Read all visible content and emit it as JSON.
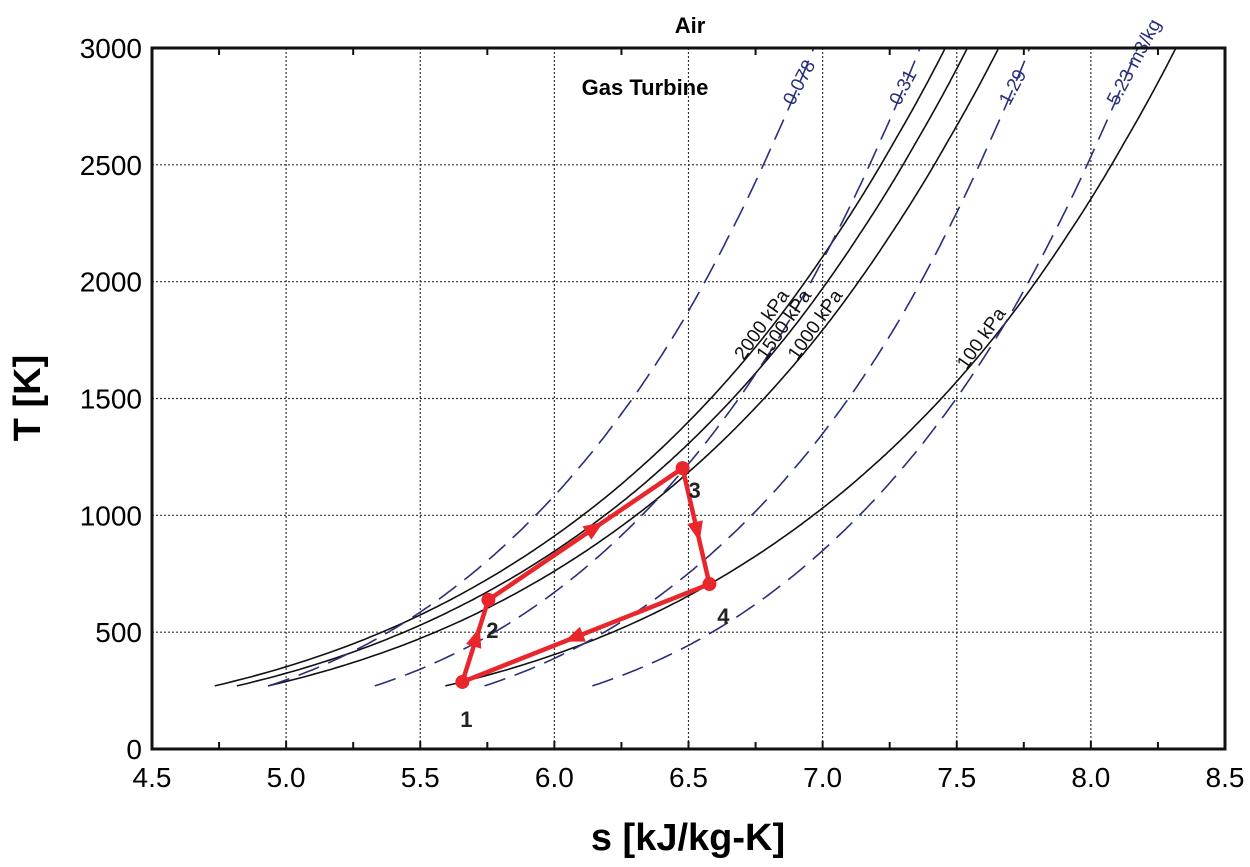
{
  "chart_data": {
    "type": "line",
    "title": "Air",
    "annotation": "Gas Turbine",
    "xlabel": "s [kJ/kg-K]",
    "ylabel": "T [K]",
    "xlim": [
      4.5,
      8.5
    ],
    "ylim": [
      0,
      3000
    ],
    "xticks": [
      "4.5",
      "5.0",
      "5.5",
      "6.0",
      "6.5",
      "7.0",
      "7.5",
      "8.0",
      "8.5"
    ],
    "yticks": [
      "0",
      "500",
      "1000",
      "1500",
      "2000",
      "2500",
      "3000"
    ],
    "grid": true,
    "isobars": [
      {
        "label": "100 kPa",
        "pressure_kPa": 100
      },
      {
        "label": "1000 kPa",
        "pressure_kPa": 1000
      },
      {
        "label": "1500 kPa",
        "pressure_kPa": 1500
      },
      {
        "label": "2000 kPa",
        "pressure_kPa": 2000
      }
    ],
    "isochores": [
      {
        "label": "0.078",
        "v": 0.078
      },
      {
        "label": "0.31",
        "v": 0.31
      },
      {
        "label": "1.29",
        "v": 1.29
      },
      {
        "label": "5.23 m3/kg",
        "v": 5.23
      }
    ],
    "cycle": {
      "points": [
        {
          "label": "1",
          "s": 5.657,
          "T": 287
        },
        {
          "label": "2",
          "s": 5.754,
          "T": 638
        },
        {
          "label": "3",
          "s": 6.478,
          "T": 1202
        },
        {
          "label": "4",
          "s": 6.578,
          "T": 706
        }
      ]
    },
    "colors": {
      "cycle": "#e8262b",
      "isobar": "#111111",
      "isochore": "#2a2f7a",
      "grid": "#333333"
    }
  }
}
